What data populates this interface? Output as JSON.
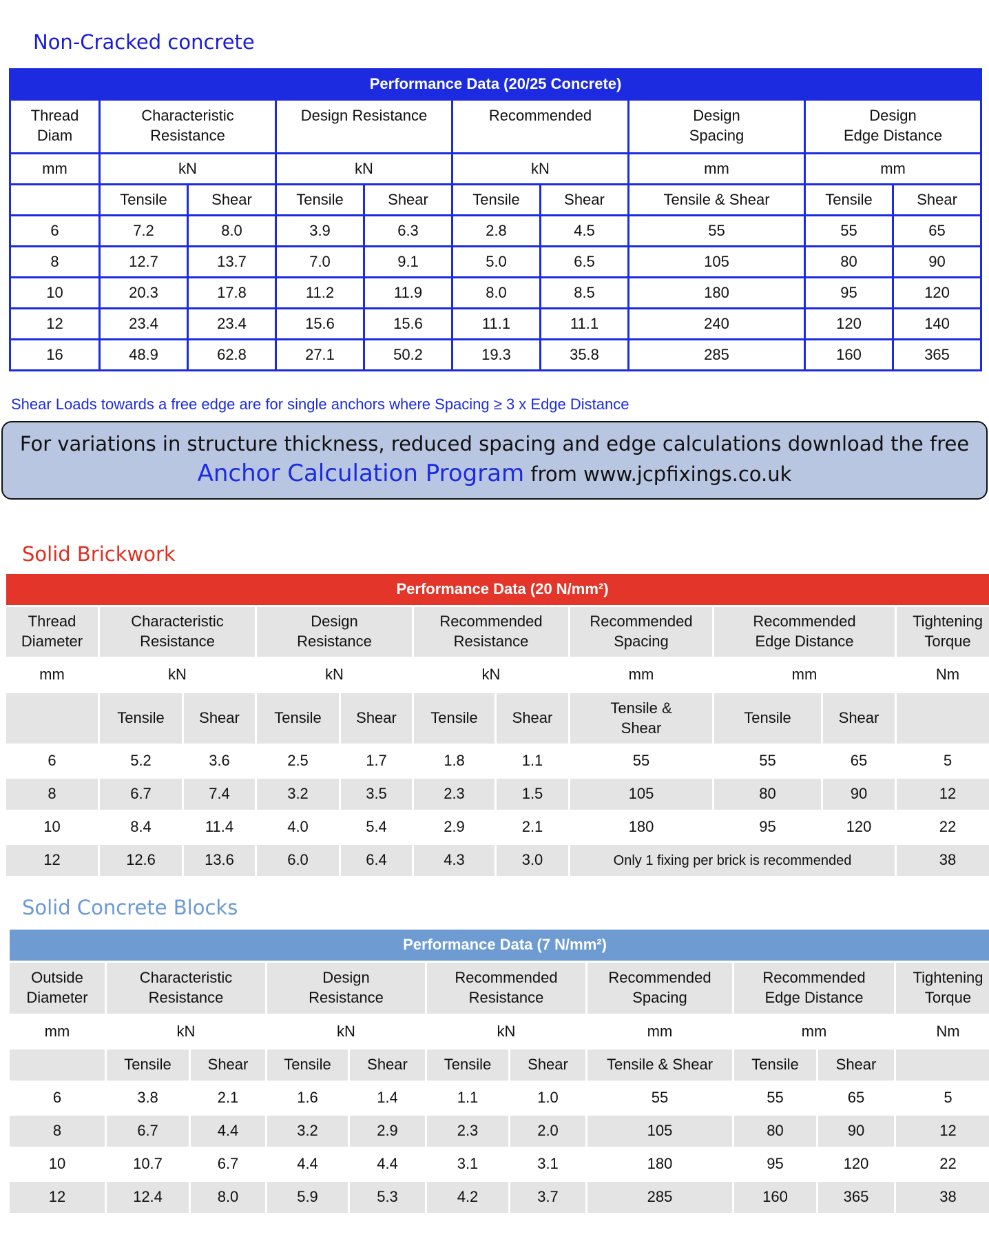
{
  "sections": [
    {
      "heading": "Non-Cracked concrete",
      "table": {
        "title": "Performance Data (20/25 Concrete)",
        "columns": [
          {
            "label": "Thread\nDiam",
            "unit": "mm"
          },
          {
            "label": "Characteristic\nResistance",
            "unit": "kN",
            "sub": [
              "Tensile",
              "Shear"
            ]
          },
          {
            "label": "Design Resistance",
            "unit": "kN",
            "sub": [
              "Tensile",
              "Shear"
            ]
          },
          {
            "label": "Recommended",
            "unit": "kN",
            "sub": [
              "Tensile",
              "Shear"
            ]
          },
          {
            "label": "Design\nSpacing",
            "unit": "mm",
            "sub": [
              "Tensile & Shear"
            ]
          },
          {
            "label": "Design\nEdge Distance",
            "unit": "mm",
            "sub": [
              "Tensile",
              "Shear"
            ]
          }
        ],
        "rows": [
          [
            "6",
            "7.2",
            "8.0",
            "3.9",
            "6.3",
            "2.8",
            "4.5",
            "55",
            "55",
            "65"
          ],
          [
            "8",
            "12.7",
            "13.7",
            "7.0",
            "9.1",
            "5.0",
            "6.5",
            "105",
            "80",
            "90"
          ],
          [
            "10",
            "20.3",
            "17.8",
            "11.2",
            "11.9",
            "8.0",
            "8.5",
            "180",
            "95",
            "120"
          ],
          [
            "12",
            "23.4",
            "23.4",
            "15.6",
            "15.6",
            "11.1",
            "11.1",
            "240",
            "120",
            "140"
          ],
          [
            "16",
            "48.9",
            "62.8",
            "27.1",
            "50.2",
            "19.3",
            "35.8",
            "285",
            "160",
            "365"
          ]
        ]
      },
      "note": "Shear Loads towards a free edge are for single anchors where Spacing ≥ 3 x Edge Distance"
    },
    {
      "heading": "Solid Brickwork",
      "table": {
        "title": "Performance Data (20 N/mm²)",
        "columns": [
          {
            "label": "Thread\nDiameter",
            "unit": "mm"
          },
          {
            "label": "Characteristic\nResistance",
            "unit": "kN",
            "sub": [
              "Tensile",
              "Shear"
            ]
          },
          {
            "label": "Design\nResistance",
            "unit": "kN",
            "sub": [
              "Tensile",
              "Shear"
            ]
          },
          {
            "label": "Recommended\nResistance",
            "unit": "kN",
            "sub": [
              "Tensile",
              "Shear"
            ]
          },
          {
            "label": "Recommended\nSpacing",
            "unit": "mm",
            "sub": [
              "Tensile &\nShear"
            ]
          },
          {
            "label": "Recommended\nEdge Distance",
            "unit": "mm",
            "sub": [
              "Tensile",
              "Shear"
            ]
          },
          {
            "label": "Tightening\nTorque",
            "unit": "Nm"
          }
        ],
        "rows": [
          [
            "6",
            "5.2",
            "3.6",
            "2.5",
            "1.7",
            "1.8",
            "1.1",
            "55",
            "55",
            "65",
            "5"
          ],
          [
            "8",
            "6.7",
            "7.4",
            "3.2",
            "3.5",
            "2.3",
            "1.5",
            "105",
            "80",
            "90",
            "12"
          ],
          [
            "10",
            "8.4",
            "11.4",
            "4.0",
            "5.4",
            "2.9",
            "2.1",
            "180",
            "95",
            "120",
            "22"
          ],
          [
            "12",
            "12.6",
            "13.6",
            "6.0",
            "6.4",
            "4.3",
            "3.0",
            "Only 1 fixing per brick is recommended",
            "38"
          ]
        ]
      }
    },
    {
      "heading": "Solid Concrete Blocks",
      "table": {
        "title": "Performance Data (7 N/mm²)",
        "columns": [
          {
            "label": "Outside\nDiameter",
            "unit": "mm"
          },
          {
            "label": "Characteristic\nResistance",
            "unit": "kN",
            "sub": [
              "Tensile",
              "Shear"
            ]
          },
          {
            "label": "Design\nResistance",
            "unit": "kN",
            "sub": [
              "Tensile",
              "Shear"
            ]
          },
          {
            "label": "Recommended\nResistance",
            "unit": "kN",
            "sub": [
              "Tensile",
              "Shear"
            ]
          },
          {
            "label": "Recommended\nSpacing",
            "unit": "mm",
            "sub": [
              "Tensile & Shear"
            ]
          },
          {
            "label": "Recommended\nEdge Distance",
            "unit": "mm",
            "sub": [
              "Tensile",
              "Shear"
            ]
          },
          {
            "label": "Tightening\nTorque",
            "unit": "Nm"
          }
        ],
        "rows": [
          [
            "6",
            "3.8",
            "2.1",
            "1.6",
            "1.4",
            "1.1",
            "1.0",
            "55",
            "55",
            "65",
            "5"
          ],
          [
            "8",
            "6.7",
            "4.4",
            "3.2",
            "2.9",
            "2.3",
            "2.0",
            "105",
            "80",
            "90",
            "12"
          ],
          [
            "10",
            "10.7",
            "6.7",
            "4.4",
            "4.4",
            "3.1",
            "3.1",
            "180",
            "95",
            "120",
            "22"
          ],
          [
            "12",
            "12.4",
            "8.0",
            "5.9",
            "5.3",
            "4.2",
            "3.7",
            "285",
            "160",
            "365",
            "38"
          ]
        ]
      }
    }
  ],
  "banner": {
    "line1": "For variations in structure thickness, reduced spacing and edge calculations download the free",
    "link": "Anchor Calculation Program",
    "line2": "from www.jcpfixings.co.uk"
  }
}
